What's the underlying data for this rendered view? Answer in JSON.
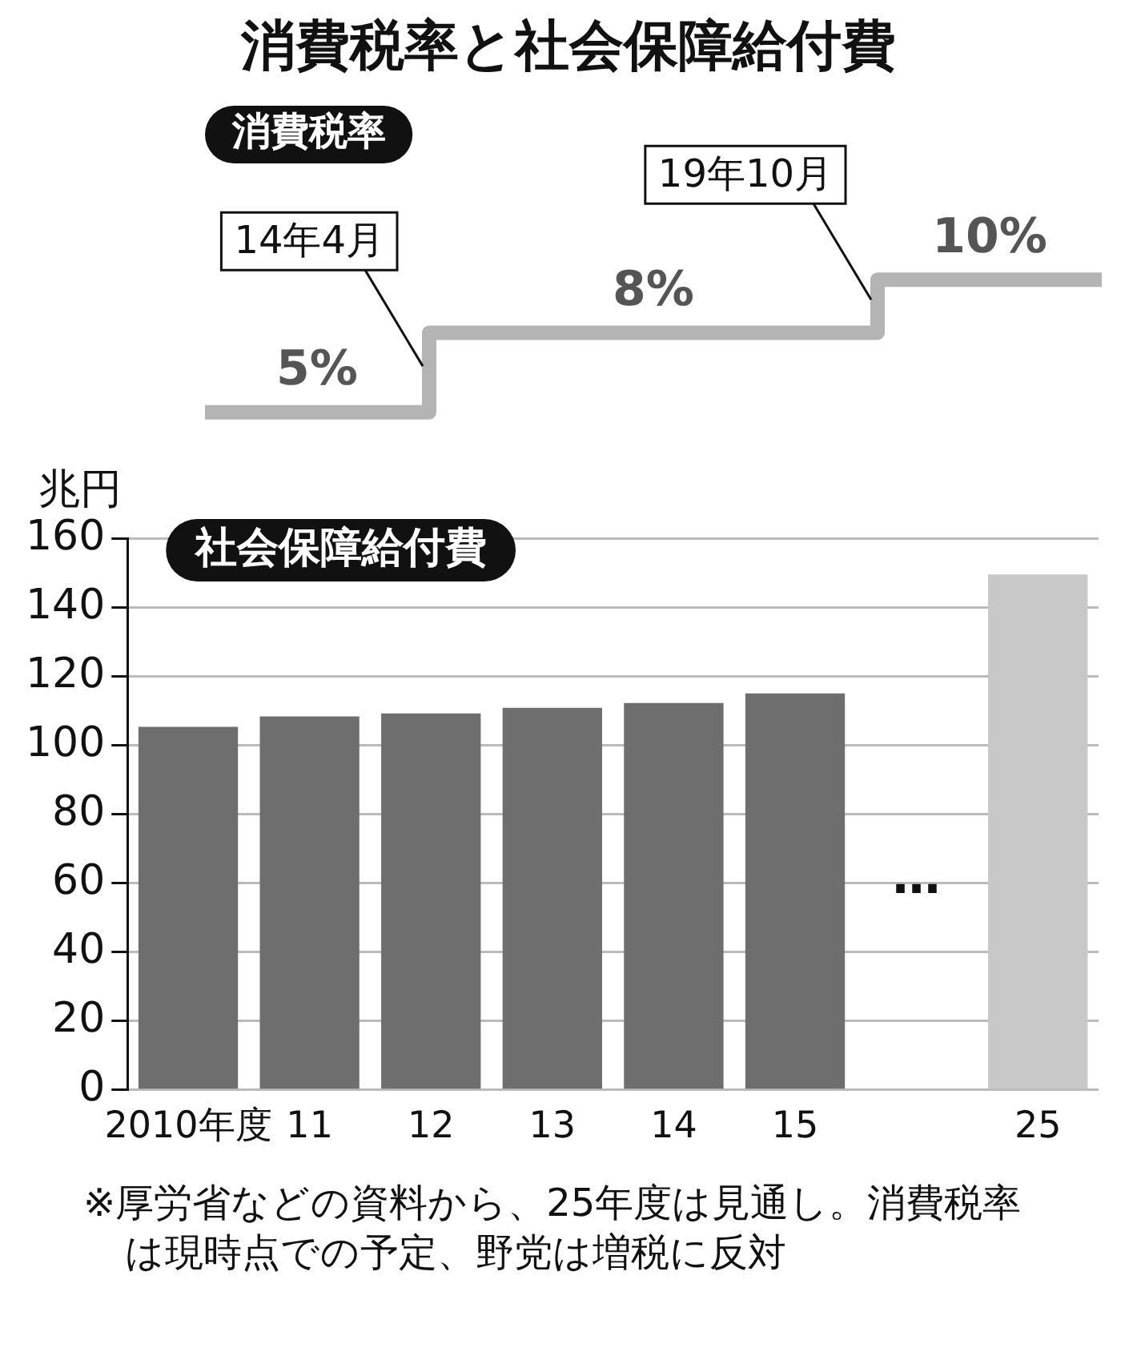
{
  "chart_data": [
    {
      "type": "step",
      "title": "消費税率と社会保障給付費",
      "subtitle": "消費税率",
      "categories": [
        null,
        null,
        null
      ],
      "values": [
        5,
        8,
        10
      ],
      "value_labels": [
        "5%",
        "8%",
        "10%"
      ],
      "color": "#b4b4b4",
      "annotations": [
        "14年4月",
        "19年10月"
      ]
    },
    {
      "type": "bar",
      "title": "社会保障給付費",
      "ylabel": "兆円",
      "categories": [
        "2010年度",
        "11",
        "12",
        "13",
        "14",
        "15",
        null,
        "25"
      ],
      "values": [
        105.3,
        108.3,
        109.2,
        110.8,
        112.2,
        115,
        null,
        149.5
      ],
      "colors": [
        "#6e6e6e",
        "#6e6e6e",
        "#6e6e6e",
        "#6e6e6e",
        "#6e6e6e",
        "#6e6e6e",
        "#6e6e6e",
        "#c8c8c8"
      ],
      "ylim": [
        0,
        160
      ],
      "yticks": [
        0,
        20,
        40,
        60,
        80,
        100,
        120,
        140,
        160
      ],
      "grid": "y",
      "annotations": [
        "…",
        "※厚労省などの資料から、25年度は見通し。消費税率は現時点での予定、野党は増税に反対"
      ]
    }
  ]
}
